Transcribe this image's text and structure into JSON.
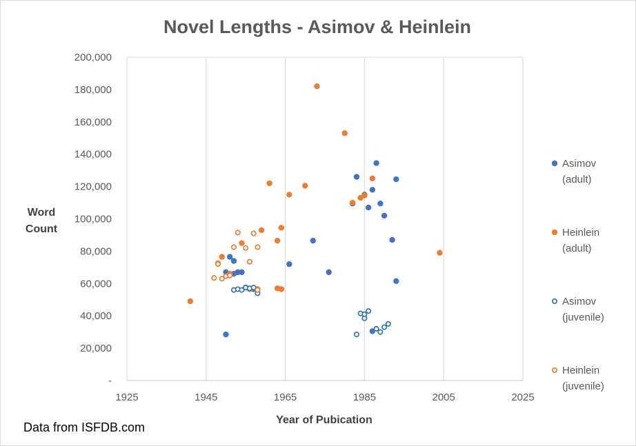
{
  "chart_data": {
    "type": "scatter",
    "title": "Novel Lengths - Asimov & Heinlein",
    "xlabel": "Year of Pubication",
    "ylabel_lines": [
      "Word",
      "Count"
    ],
    "xlim": [
      1925,
      2025
    ],
    "ylim": [
      0,
      200000
    ],
    "x_ticks": [
      1925,
      1945,
      1965,
      1985,
      2005,
      2025
    ],
    "x_tick_labels": [
      "1925",
      "1945",
      "1965",
      "1985",
      "2005",
      "2025"
    ],
    "y_ticks": [
      0,
      20000,
      40000,
      60000,
      80000,
      100000,
      120000,
      140000,
      160000,
      180000,
      200000
    ],
    "y_tick_labels": [
      "-",
      "20,000",
      "40,000",
      "60,000",
      "80,000",
      "100,000",
      "120,000",
      "140,000",
      "160,000",
      "180,000",
      "200,000"
    ],
    "grid": "vertical",
    "legend_position": "right",
    "source_note": "Data from ISFDB.com",
    "series": [
      {
        "name": "Asimov (adult)",
        "legend_lines": [
          "Asimov",
          "(adult)"
        ],
        "color": "#4472c4",
        "filled": true,
        "points": [
          [
            1950,
            28500
          ],
          [
            1950,
            67000
          ],
          [
            1951,
            76500
          ],
          [
            1952,
            74000
          ],
          [
            1952,
            66000
          ],
          [
            1953,
            67000
          ],
          [
            1954,
            67000
          ],
          [
            1955,
            57500
          ],
          [
            1957,
            56500
          ],
          [
            1966,
            72000
          ],
          [
            1972,
            86500
          ],
          [
            1976,
            67000
          ],
          [
            1982,
            109500
          ],
          [
            1983,
            126000
          ],
          [
            1985,
            115000
          ],
          [
            1986,
            107000
          ],
          [
            1987,
            118000
          ],
          [
            1988,
            134500
          ],
          [
            1989,
            109500
          ],
          [
            1990,
            102000
          ],
          [
            1992,
            87000
          ],
          [
            1993,
            124500
          ],
          [
            1993,
            61500
          ],
          [
            1987,
            30500
          ]
        ]
      },
      {
        "name": "Heinlein (adult)",
        "legend_lines": [
          "Heinlein",
          "(adult)"
        ],
        "color": "#ed7d31",
        "filled": true,
        "points": [
          [
            1941,
            49000
          ],
          [
            1948,
            72500
          ],
          [
            1949,
            76500
          ],
          [
            1951,
            66000
          ],
          [
            1954,
            85000
          ],
          [
            1956,
            56500
          ],
          [
            1958,
            56500
          ],
          [
            1959,
            93000
          ],
          [
            1961,
            122000
          ],
          [
            1963,
            86500
          ],
          [
            1963,
            57000
          ],
          [
            1964,
            94500
          ],
          [
            1964,
            56500
          ],
          [
            1966,
            115000
          ],
          [
            1970,
            120500
          ],
          [
            1973,
            182000
          ],
          [
            1980,
            153000
          ],
          [
            1982,
            110000
          ],
          [
            1984,
            113000
          ],
          [
            1985,
            114500
          ],
          [
            1987,
            125000
          ],
          [
            2004,
            79000
          ]
        ]
      },
      {
        "name": "Asimov (juvenile)",
        "legend_lines": [
          "Asimov",
          "(juvenile)"
        ],
        "color": "#2e75b6",
        "filled": false,
        "points": [
          [
            1952,
            56000
          ],
          [
            1953,
            56500
          ],
          [
            1954,
            56000
          ],
          [
            1955,
            57500
          ],
          [
            1956,
            57000
          ],
          [
            1957,
            57500
          ],
          [
            1958,
            54000
          ],
          [
            1983,
            28500
          ],
          [
            1984,
            41500
          ],
          [
            1985,
            38500
          ],
          [
            1985,
            41000
          ],
          [
            1986,
            43000
          ],
          [
            1988,
            32000
          ],
          [
            1989,
            30000
          ],
          [
            1990,
            33000
          ],
          [
            1991,
            35000
          ]
        ]
      },
      {
        "name": "Heinlein (juvenile)",
        "legend_lines": [
          "Heinlein",
          "(juvenile)"
        ],
        "color": "#ed7d31",
        "filled": false,
        "points": [
          [
            1947,
            63500
          ],
          [
            1948,
            72000
          ],
          [
            1949,
            63000
          ],
          [
            1950,
            64500
          ],
          [
            1951,
            65000
          ],
          [
            1952,
            82500
          ],
          [
            1953,
            91500
          ],
          [
            1955,
            82000
          ],
          [
            1956,
            73500
          ],
          [
            1957,
            91000
          ],
          [
            1958,
            82500
          ],
          [
            1958,
            56000
          ]
        ]
      }
    ]
  }
}
